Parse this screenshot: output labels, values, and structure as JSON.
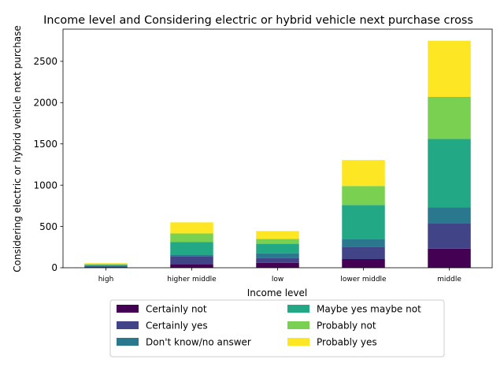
{
  "chart_data": {
    "type": "bar",
    "stacked": true,
    "title": "Income level and Considering electric or hybrid vehicle next purchase cross",
    "xlabel": "Income level",
    "ylabel": "Considering electric or hybrid vehicle next purchase",
    "ylim": [
      0,
      2890
    ],
    "yticks": [
      0,
      500,
      1000,
      1500,
      2000,
      2500
    ],
    "grid": false,
    "legend_position": "bottom-center",
    "categories": [
      "high",
      "higher middle",
      "low",
      "lower middle",
      "middle"
    ],
    "series": [
      {
        "name": "Certainly not",
        "color": "#440154",
        "values": [
          5,
          45,
          60,
          105,
          230
        ]
      },
      {
        "name": "Certainly yes",
        "color": "#414487",
        "values": [
          10,
          95,
          55,
          150,
          310
        ]
      },
      {
        "name": "Don't know/no answer",
        "color": "#2a788e",
        "values": [
          10,
          20,
          60,
          95,
          190
        ]
      },
      {
        "name": "Maybe yes maybe not",
        "color": "#22a884",
        "values": [
          10,
          150,
          115,
          410,
          830
        ]
      },
      {
        "name": "Probably not",
        "color": "#7ad151",
        "values": [
          10,
          105,
          60,
          230,
          510
        ]
      },
      {
        "name": "Probably yes",
        "color": "#fde725",
        "values": [
          10,
          135,
          95,
          315,
          680
        ]
      }
    ]
  }
}
